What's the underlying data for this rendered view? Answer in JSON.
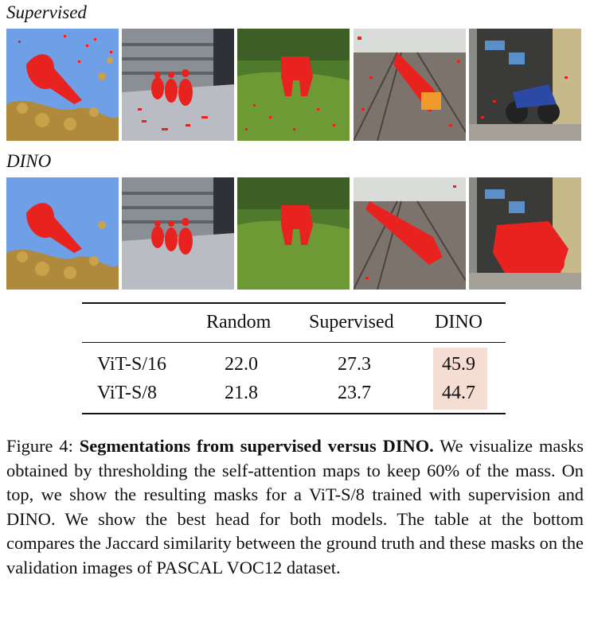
{
  "rows": {
    "supervised_label": "Supervised",
    "dino_label": "DINO"
  },
  "images": [
    {
      "icon": "bird-photo"
    },
    {
      "icon": "ducks-photo"
    },
    {
      "icon": "elephant-photo"
    },
    {
      "icon": "train-photo"
    },
    {
      "icon": "motorbike-photo"
    }
  ],
  "table": {
    "columns": [
      "",
      "Random",
      "Supervised",
      "DINO"
    ],
    "rows": [
      {
        "model": "ViT-S/16",
        "random": "22.0",
        "supervised": "27.3",
        "dino": "45.9"
      },
      {
        "model": "ViT-S/8",
        "random": "21.8",
        "supervised": "23.7",
        "dino": "44.7"
      }
    ],
    "highlight_color": "#f6ddd3"
  },
  "caption": {
    "prefix": "Figure 4: ",
    "title": "Segmentations from supervised versus DINO.",
    "body": " We visualize masks obtained by thresholding the self-attention maps to keep 60% of the mass. On top, we show the resulting masks for a ViT-S/8 trained with supervision and DINO. We show the best head for both models. The table at the bottom compares the Jaccard similarity between the ground truth and these masks on the validation images of PASCAL VOC12 dataset."
  },
  "colors": {
    "mask": "#e8231f"
  }
}
